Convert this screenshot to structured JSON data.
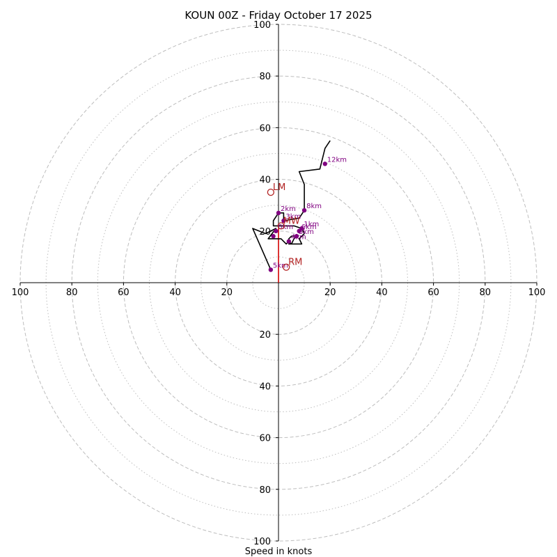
{
  "chart_data": {
    "type": "hodograph",
    "title": "KOUN 00Z - Friday October 17 2025",
    "xlabel": "Speed in knots",
    "range": 100,
    "rings_major": [
      20,
      40,
      60,
      80,
      100
    ],
    "rings_minor": [
      10,
      30,
      50,
      70,
      90
    ],
    "x_ticks": [
      "100",
      "80",
      "60",
      "40",
      "20",
      "20",
      "40",
      "60",
      "80",
      "100"
    ],
    "y_ticks": [
      "100",
      "80",
      "60",
      "40",
      "20",
      "20",
      "40",
      "60",
      "80",
      "100"
    ],
    "profile": [
      [
        -3,
        5
      ],
      [
        -10,
        21
      ],
      [
        -5,
        19
      ],
      [
        -1,
        21
      ],
      [
        -4,
        17
      ],
      [
        1,
        17
      ],
      [
        3,
        15
      ],
      [
        4,
        16
      ],
      [
        5,
        15
      ],
      [
        6,
        17
      ],
      [
        7,
        18
      ],
      [
        5,
        18
      ],
      [
        4,
        17
      ],
      [
        4,
        15
      ],
      [
        9,
        15
      ],
      [
        8,
        17
      ],
      [
        10,
        19
      ],
      [
        9,
        21
      ],
      [
        6,
        22
      ],
      [
        2,
        22
      ],
      [
        -2,
        22
      ],
      [
        -2,
        24
      ],
      [
        0,
        27
      ],
      [
        2,
        27
      ],
      [
        2,
        24
      ],
      [
        8,
        25
      ],
      [
        10,
        28
      ],
      [
        10,
        38
      ],
      [
        8,
        43
      ],
      [
        16,
        44
      ],
      [
        18,
        52
      ],
      [
        20,
        55
      ]
    ],
    "height_markers": [
      {
        "label": "5km",
        "u": -3,
        "v": 5
      },
      {
        "label": "",
        "u": -2,
        "v": 18
      },
      {
        "label": "0km",
        "u": -1,
        "v": 20
      },
      {
        "label": "2km",
        "u": 0,
        "v": 27
      },
      {
        "label": "3km",
        "u": 2,
        "v": 24
      },
      {
        "label": "4km",
        "u": 4,
        "v": 16
      },
      {
        "label": "5km",
        "u": 7,
        "v": 18
      },
      {
        "label": "6km",
        "u": 8,
        "v": 20
      },
      {
        "label": "1km",
        "u": 9,
        "v": 21
      },
      {
        "label": "8km",
        "u": 10,
        "v": 28
      },
      {
        "label": "12km",
        "u": 18,
        "v": 46
      }
    ],
    "motion_markers": [
      {
        "label": "LM",
        "u": -3,
        "v": 35
      },
      {
        "label": "RM",
        "u": 3,
        "v": 6
      },
      {
        "label": "MW",
        "u": 1,
        "v": 22
      }
    ],
    "red_segment": [
      [
        0,
        0
      ],
      [
        0,
        21
      ]
    ],
    "colors": {
      "profile": "#000000",
      "height_marker": "#800080",
      "motion": "#b22222",
      "ring": "#bdbdbd",
      "axis": "#000000"
    }
  }
}
